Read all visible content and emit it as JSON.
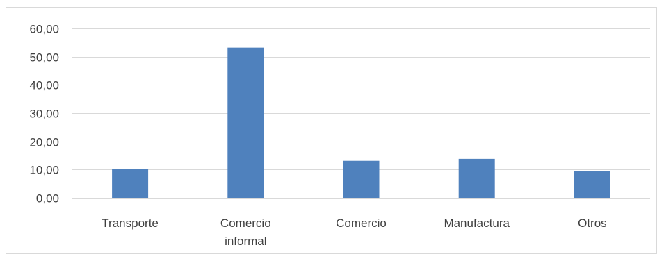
{
  "chart_data": {
    "type": "bar",
    "title": "",
    "xlabel": "",
    "ylabel": "",
    "categories": [
      [
        "Transporte"
      ],
      [
        "Comercio",
        "informal"
      ],
      [
        "Comercio"
      ],
      [
        "Manufactura"
      ],
      [
        "Otros"
      ]
    ],
    "values": [
      10.1,
      53.2,
      13.1,
      13.8,
      9.5
    ],
    "ylim": [
      0,
      60
    ],
    "ytick_values": [
      0,
      10,
      20,
      30,
      40,
      50,
      60
    ],
    "ytick_labels": [
      "0,00",
      "10,00",
      "20,00",
      "30,00",
      "40,00",
      "50,00",
      "60,00"
    ],
    "grid": true,
    "legend": "none",
    "bar_color": "#4f81bd",
    "grid_color": "#d9d9d9"
  }
}
